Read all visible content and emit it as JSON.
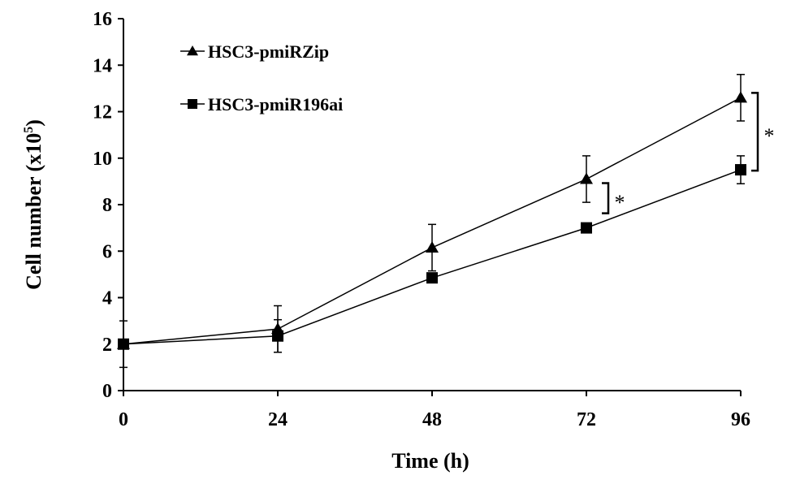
{
  "chart_data": {
    "type": "line",
    "title": "",
    "xlabel": "Time (h)",
    "ylabel": "Cell number (x10",
    "ylabel_superscript": "5",
    "ylabel_close": ")",
    "x": [
      0,
      24,
      48,
      72,
      96
    ],
    "x_ticks": [
      "0",
      "24",
      "48",
      "72",
      "96"
    ],
    "xlim": [
      0,
      96
    ],
    "ylim": [
      0,
      16
    ],
    "y_ticks": [
      "0",
      "2",
      "4",
      "6",
      "8",
      "10",
      "12",
      "14",
      "16"
    ],
    "grid": false,
    "legend_position": "top-left",
    "series": [
      {
        "name": "HSC3-pmiRZip",
        "marker": "triangle",
        "values": [
          2.0,
          2.65,
          6.15,
          9.1,
          12.6
        ],
        "errors": [
          1.0,
          1.0,
          1.0,
          1.0,
          1.0
        ]
      },
      {
        "name": "HSC3-pmiR196ai",
        "marker": "square",
        "values": [
          2.0,
          2.35,
          4.85,
          7.0,
          9.5
        ],
        "errors": [
          0.0,
          0.7,
          0.0,
          0.0,
          0.6
        ]
      }
    ],
    "annotations": [
      {
        "label": "*",
        "x": 72,
        "y_range": [
          7.0,
          9.1
        ]
      },
      {
        "label": "*",
        "x": 96,
        "y_range": [
          9.5,
          12.6
        ]
      }
    ]
  }
}
